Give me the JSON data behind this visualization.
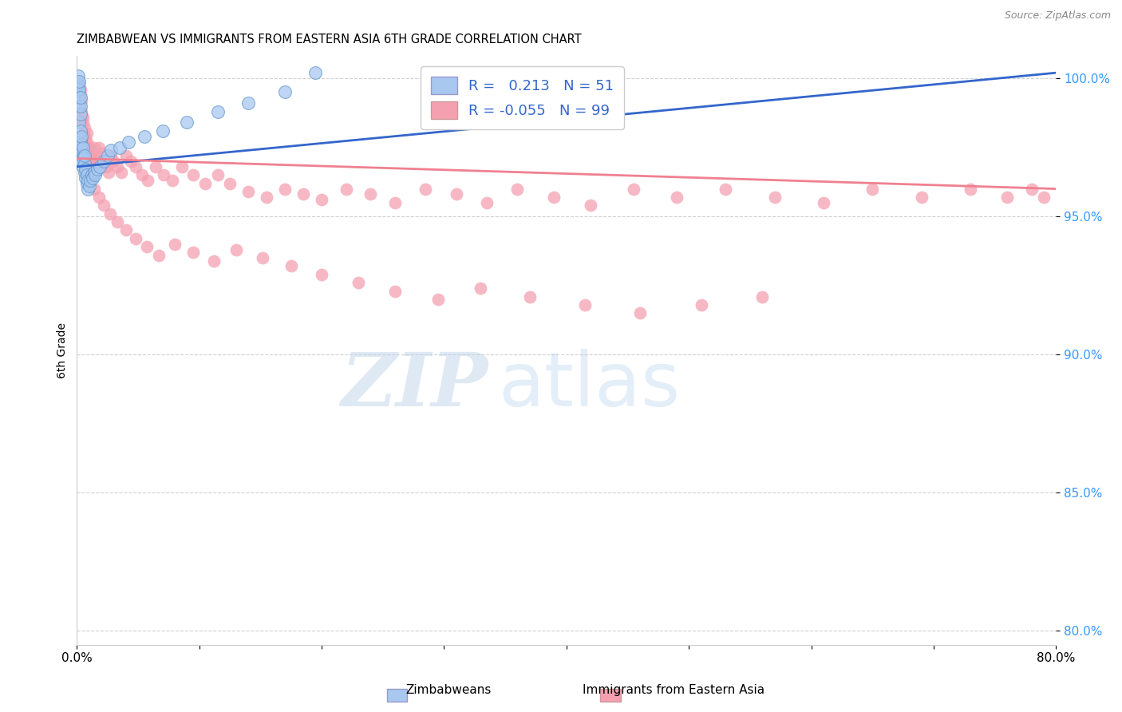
{
  "title": "ZIMBABWEAN VS IMMIGRANTS FROM EASTERN ASIA 6TH GRADE CORRELATION CHART",
  "source": "Source: ZipAtlas.com",
  "ylabel": "6th Grade",
  "xlim": [
    0.0,
    0.8
  ],
  "ylim": [
    0.795,
    1.008
  ],
  "yticks": [
    0.8,
    0.85,
    0.9,
    0.95,
    1.0
  ],
  "ytick_labels": [
    "80.0%",
    "85.0%",
    "90.0%",
    "95.0%",
    "100.0%"
  ],
  "xticks": [
    0.0,
    0.1,
    0.2,
    0.3,
    0.4,
    0.5,
    0.6,
    0.7,
    0.8
  ],
  "xtick_labels": [
    "0.0%",
    "",
    "",
    "",
    "",
    "",
    "",
    "",
    "80.0%"
  ],
  "blue_R": 0.213,
  "blue_N": 51,
  "pink_R": -0.055,
  "pink_N": 99,
  "blue_color": "#A8C8F0",
  "pink_color": "#F4A0B0",
  "blue_line_color": "#3366CC",
  "pink_line_color": "#F08090",
  "watermark_zip": "ZIP",
  "watermark_atlas": "atlas",
  "legend_blue_label": "Zimbabweans",
  "legend_pink_label": "Immigrants from Eastern Asia",
  "blue_scatter_x": [
    0.001,
    0.001,
    0.001,
    0.002,
    0.002,
    0.002,
    0.002,
    0.002,
    0.003,
    0.003,
    0.003,
    0.003,
    0.003,
    0.003,
    0.004,
    0.004,
    0.004,
    0.004,
    0.005,
    0.005,
    0.005,
    0.005,
    0.006,
    0.006,
    0.006,
    0.007,
    0.007,
    0.008,
    0.008,
    0.009,
    0.009,
    0.01,
    0.011,
    0.012,
    0.013,
    0.014,
    0.015,
    0.017,
    0.019,
    0.022,
    0.025,
    0.028,
    0.035,
    0.042,
    0.055,
    0.07,
    0.09,
    0.115,
    0.14,
    0.17,
    0.195
  ],
  "blue_scatter_y": [
    0.995,
    0.998,
    1.001,
    0.99,
    0.993,
    0.996,
    0.999,
    0.984,
    0.987,
    0.99,
    0.993,
    0.975,
    0.978,
    0.981,
    0.973,
    0.976,
    0.979,
    0.97,
    0.972,
    0.975,
    0.968,
    0.971,
    0.966,
    0.969,
    0.972,
    0.964,
    0.967,
    0.962,
    0.965,
    0.96,
    0.963,
    0.961,
    0.963,
    0.965,
    0.964,
    0.966,
    0.965,
    0.967,
    0.968,
    0.97,
    0.972,
    0.974,
    0.975,
    0.977,
    0.979,
    0.981,
    0.984,
    0.988,
    0.991,
    0.995,
    1.002
  ],
  "pink_scatter_x": [
    0.002,
    0.003,
    0.003,
    0.004,
    0.004,
    0.005,
    0.005,
    0.006,
    0.006,
    0.007,
    0.007,
    0.008,
    0.008,
    0.009,
    0.009,
    0.01,
    0.011,
    0.012,
    0.013,
    0.014,
    0.015,
    0.016,
    0.017,
    0.018,
    0.02,
    0.022,
    0.024,
    0.026,
    0.028,
    0.03,
    0.033,
    0.036,
    0.04,
    0.044,
    0.048,
    0.053,
    0.058,
    0.064,
    0.071,
    0.078,
    0.086,
    0.095,
    0.105,
    0.115,
    0.125,
    0.14,
    0.155,
    0.17,
    0.185,
    0.2,
    0.22,
    0.24,
    0.26,
    0.285,
    0.31,
    0.335,
    0.36,
    0.39,
    0.42,
    0.455,
    0.49,
    0.53,
    0.57,
    0.61,
    0.65,
    0.69,
    0.73,
    0.76,
    0.78,
    0.79,
    0.003,
    0.005,
    0.008,
    0.011,
    0.014,
    0.018,
    0.022,
    0.027,
    0.033,
    0.04,
    0.048,
    0.057,
    0.067,
    0.08,
    0.095,
    0.112,
    0.13,
    0.152,
    0.175,
    0.2,
    0.23,
    0.26,
    0.295,
    0.33,
    0.37,
    0.415,
    0.46,
    0.51,
    0.56
  ],
  "pink_scatter_y": [
    0.998,
    0.996,
    0.994,
    0.992,
    0.988,
    0.986,
    0.984,
    0.982,
    0.979,
    0.977,
    0.974,
    0.98,
    0.977,
    0.975,
    0.972,
    0.975,
    0.973,
    0.971,
    0.969,
    0.975,
    0.972,
    0.97,
    0.968,
    0.975,
    0.973,
    0.97,
    0.968,
    0.966,
    0.972,
    0.97,
    0.968,
    0.966,
    0.972,
    0.97,
    0.968,
    0.965,
    0.963,
    0.968,
    0.965,
    0.963,
    0.968,
    0.965,
    0.962,
    0.965,
    0.962,
    0.959,
    0.957,
    0.96,
    0.958,
    0.956,
    0.96,
    0.958,
    0.955,
    0.96,
    0.958,
    0.955,
    0.96,
    0.957,
    0.954,
    0.96,
    0.957,
    0.96,
    0.957,
    0.955,
    0.96,
    0.957,
    0.96,
    0.957,
    0.96,
    0.957,
    0.985,
    0.974,
    0.971,
    0.968,
    0.96,
    0.957,
    0.954,
    0.951,
    0.948,
    0.945,
    0.942,
    0.939,
    0.936,
    0.94,
    0.937,
    0.934,
    0.938,
    0.935,
    0.932,
    0.929,
    0.926,
    0.923,
    0.92,
    0.924,
    0.921,
    0.918,
    0.915,
    0.918,
    0.921
  ],
  "blue_trend_x": [
    0.0,
    0.8
  ],
  "blue_trend_y": [
    0.968,
    1.002
  ],
  "pink_trend_x": [
    0.0,
    0.8
  ],
  "pink_trend_y": [
    0.971,
    0.96
  ]
}
